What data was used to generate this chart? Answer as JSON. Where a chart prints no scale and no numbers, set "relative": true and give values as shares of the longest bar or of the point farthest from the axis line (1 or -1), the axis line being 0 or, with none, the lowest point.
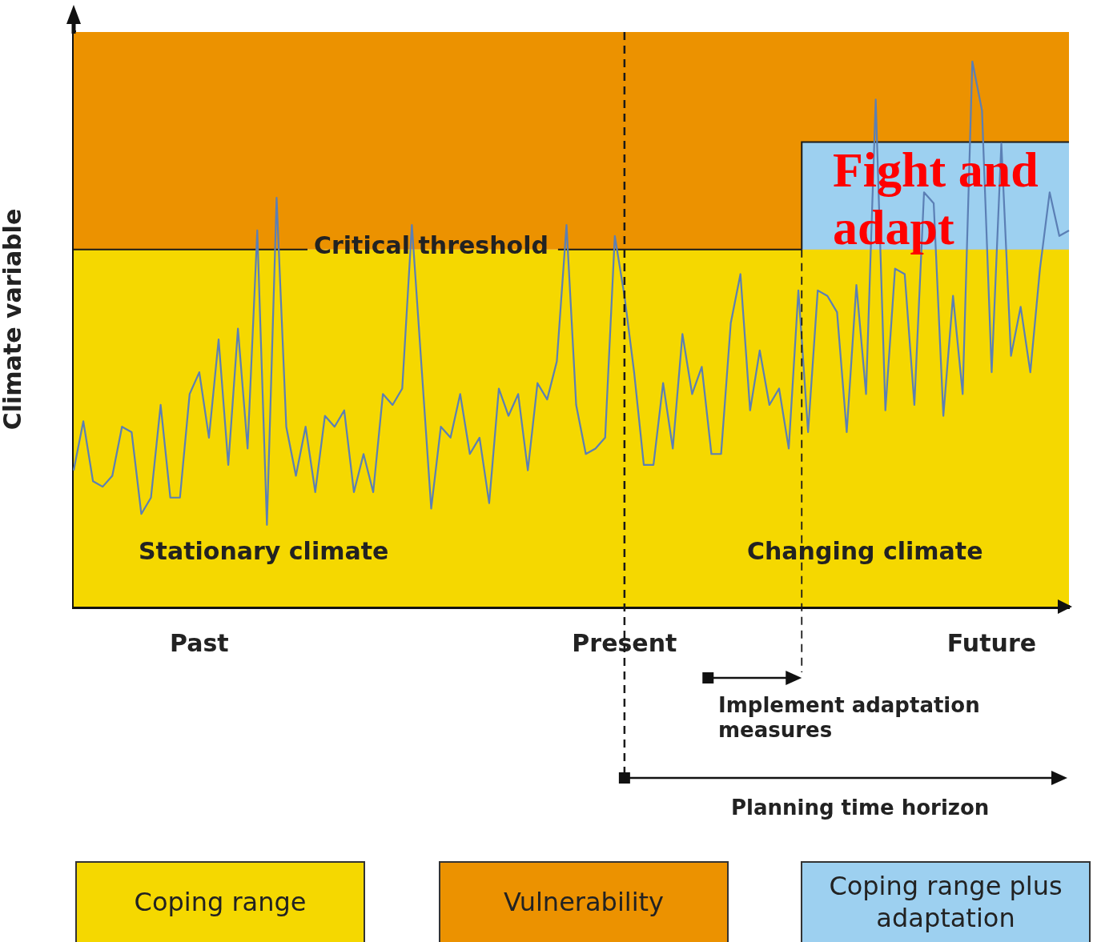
{
  "chart_data": {
    "type": "line",
    "relative": true,
    "ylabel": "Climate variable",
    "categories": [
      null,
      null,
      null,
      null,
      null,
      null,
      null,
      null,
      null,
      null,
      null,
      null,
      null,
      "Past",
      null,
      null,
      null,
      null,
      null,
      null,
      null,
      null,
      null,
      null,
      null,
      null,
      null,
      null,
      null,
      null,
      null,
      null,
      null,
      null,
      null,
      null,
      null,
      null,
      null,
      null,
      null,
      null,
      null,
      null,
      null,
      null,
      null,
      null,
      null,
      null,
      null,
      null,
      null,
      null,
      null,
      null,
      null,
      "Present",
      null,
      null,
      null,
      null,
      null,
      null,
      null,
      null,
      null,
      null,
      null,
      null,
      null,
      null,
      null,
      null,
      null,
      null,
      null,
      null,
      null,
      null,
      null,
      null,
      null,
      null,
      null,
      null,
      null,
      null,
      null,
      null,
      null,
      null,
      null,
      null,
      null,
      "Future",
      null,
      null,
      null,
      null,
      null,
      null,
      null,
      null
    ],
    "series": [
      {
        "color": "#5b7fb5",
        "values": [
          0.25,
          0.34,
          0.23,
          0.22,
          0.24,
          0.33,
          0.32,
          0.17,
          0.2,
          0.37,
          0.2,
          0.2,
          0.39,
          0.43,
          0.31,
          0.49,
          0.26,
          0.51,
          0.29,
          0.69,
          0.15,
          0.75,
          0.33,
          0.24,
          0.33,
          0.21,
          0.35,
          0.33,
          0.36,
          0.21,
          0.28,
          0.21,
          0.39,
          0.37,
          0.4,
          0.7,
          0.44,
          0.18,
          0.33,
          0.31,
          0.39,
          0.28,
          0.31,
          0.19,
          0.4,
          0.35,
          0.39,
          0.25,
          0.41,
          0.38,
          0.45,
          0.7,
          0.37,
          0.28,
          0.29,
          0.31,
          0.68,
          0.57,
          0.43,
          0.26,
          0.26,
          0.41,
          0.29,
          0.5,
          0.39,
          0.44,
          0.28,
          0.28,
          0.52,
          0.61,
          0.36,
          0.47,
          0.37,
          0.4,
          0.29,
          0.58,
          0.32,
          0.58,
          0.57,
          0.54,
          0.32,
          0.59,
          0.39,
          0.93,
          0.36,
          0.62,
          0.61,
          0.37,
          0.76,
          0.74,
          0.35,
          0.57,
          0.39,
          1,
          0.91,
          0.43,
          0.85,
          0.46,
          0.55,
          0.43,
          0.62,
          0.76,
          0.68,
          0.69
        ]
      }
    ],
    "marker": "none",
    "line_style": "solid",
    "bands": [
      {
        "axis": "y",
        "from": 0,
        "to": 0.655,
        "color": "#f5d800"
      },
      {
        "axis": "y",
        "from": 0.655,
        "to": 1.054,
        "color": "#ec9200"
      },
      {
        "axis": "y",
        "from": 0.655,
        "to": 0.852,
        "color": "#9dd0f0"
      }
    ],
    "ref_lines": [
      {
        "axis": "y",
        "value": 0.655,
        "label": "Critical threshold",
        "color": "#1a1a1a",
        "line_style": "solid"
      },
      {
        "axis": "x",
        "value": "Present",
        "label": null,
        "color": "#1a1a1a",
        "line_style": "dashed"
      }
    ],
    "annotations": [
      "Stationary climate",
      "Changing climate",
      "Fight and adapt",
      "Implement adaptation measures",
      "Planning time horizon",
      "Coping range",
      "Vulnerability",
      "Coping range plus adaptation"
    ]
  }
}
